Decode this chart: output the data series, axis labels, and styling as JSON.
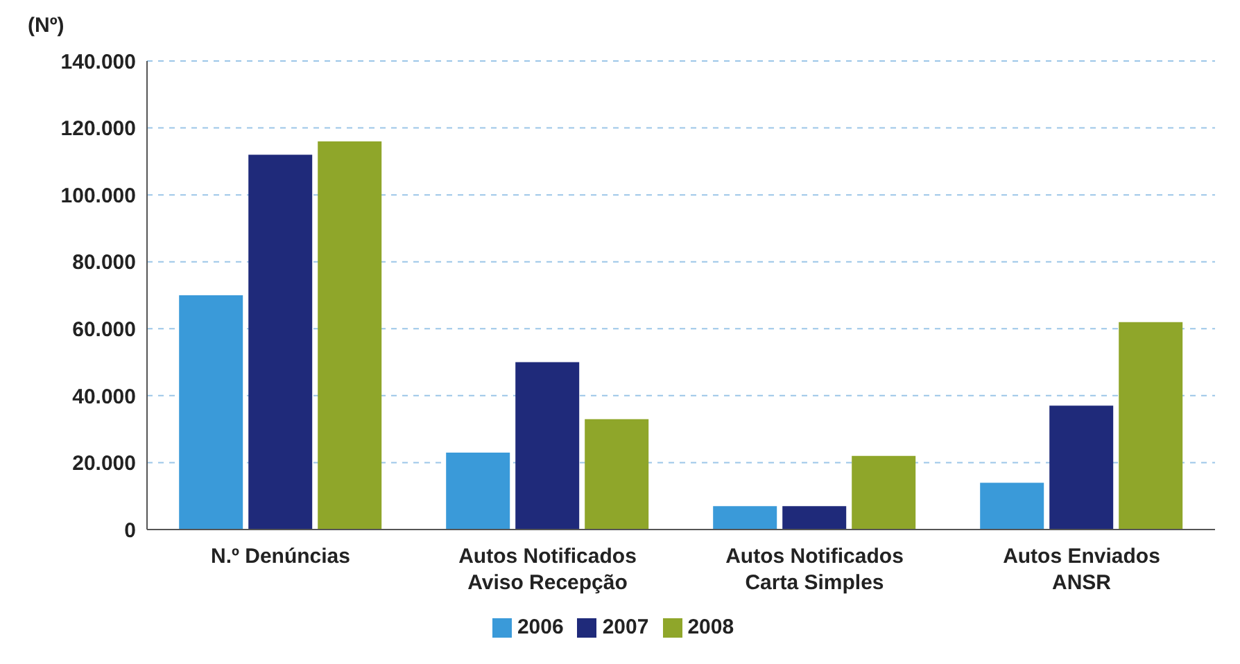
{
  "chart_data": {
    "type": "bar",
    "ylabel": "(Nº)",
    "categories": [
      "N.º Denúncias",
      "Autos Notificados\nAviso Recepção",
      "Autos Notificados\nCarta Simples",
      "Autos Enviados\nANSR"
    ],
    "series": [
      {
        "name": "2006",
        "color": "#3a9ad9",
        "values": [
          70000,
          23000,
          7000,
          14000
        ]
      },
      {
        "name": "2007",
        "color": "#1f2a7a",
        "values": [
          112000,
          50000,
          7000,
          37000
        ]
      },
      {
        "name": "2008",
        "color": "#8fa62a",
        "values": [
          116000,
          33000,
          22000,
          62000
        ]
      }
    ],
    "ylim": [
      0,
      140000
    ],
    "yticks": [
      0,
      {
        "value": 20000,
        "label": "20.000"
      },
      {
        "value": 40000,
        "label": "40.000"
      },
      {
        "value": 60000,
        "label": "60.000"
      },
      {
        "value": 80000,
        "label": "80.000"
      },
      {
        "value": 100000,
        "label": "100.000"
      },
      {
        "value": 120000,
        "label": "120.000"
      },
      {
        "value": 140000,
        "label": "140.000"
      }
    ],
    "grid": "y",
    "legend": "bottom"
  }
}
